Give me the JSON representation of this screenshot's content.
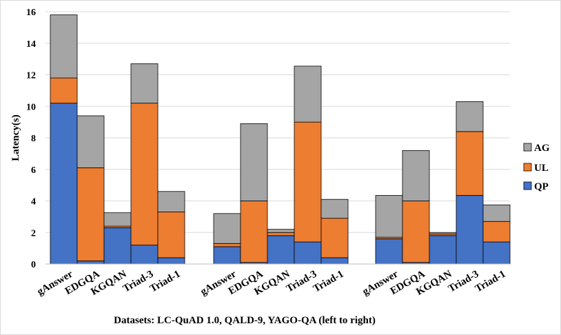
{
  "chart_data": {
    "type": "bar",
    "stacked": true,
    "xlabel": "Datasets: LC-QuAD 1.0, QALD-9, YAGO-QA (left to right)",
    "ylabel": "Latency(s)",
    "ylim": [
      0,
      16
    ],
    "yticks": [
      0,
      2,
      4,
      6,
      8,
      10,
      12,
      14,
      16
    ],
    "grid": "horizontal",
    "legend_position": "right",
    "groups": [
      "LC-QuAD 1.0",
      "QALD-9",
      "YAGO-QA"
    ],
    "categories": [
      "gAnswer",
      "EDGQA",
      "KGQAN",
      "Triad-3",
      "Triad-1",
      "gAnswer",
      "EDGQA",
      "KGQAN",
      "Triad-3",
      "Triad-1",
      "gAnswer",
      "EDGQA",
      "KGQAN",
      "Triad-3",
      "Triad-1"
    ],
    "series": [
      {
        "name": "QP",
        "color": "#4472c4",
        "values": [
          10.2,
          0.2,
          2.3,
          1.2,
          0.4,
          1.1,
          0.1,
          1.8,
          1.4,
          0.4,
          1.6,
          0.1,
          1.8,
          4.35,
          1.4
        ]
      },
      {
        "name": "UL",
        "color": "#ed7d31",
        "values": [
          1.6,
          5.9,
          0.1,
          9.0,
          2.9,
          0.2,
          3.9,
          0.2,
          7.6,
          2.5,
          0.1,
          3.9,
          0.1,
          4.05,
          1.3
        ]
      },
      {
        "name": "AG",
        "color": "#a5a5a5",
        "values": [
          4.0,
          3.3,
          0.85,
          2.5,
          1.3,
          1.9,
          4.9,
          0.2,
          3.55,
          1.2,
          2.65,
          3.2,
          0.1,
          1.9,
          1.05
        ]
      }
    ],
    "legend_order": [
      "AG",
      "UL",
      "QP"
    ]
  }
}
